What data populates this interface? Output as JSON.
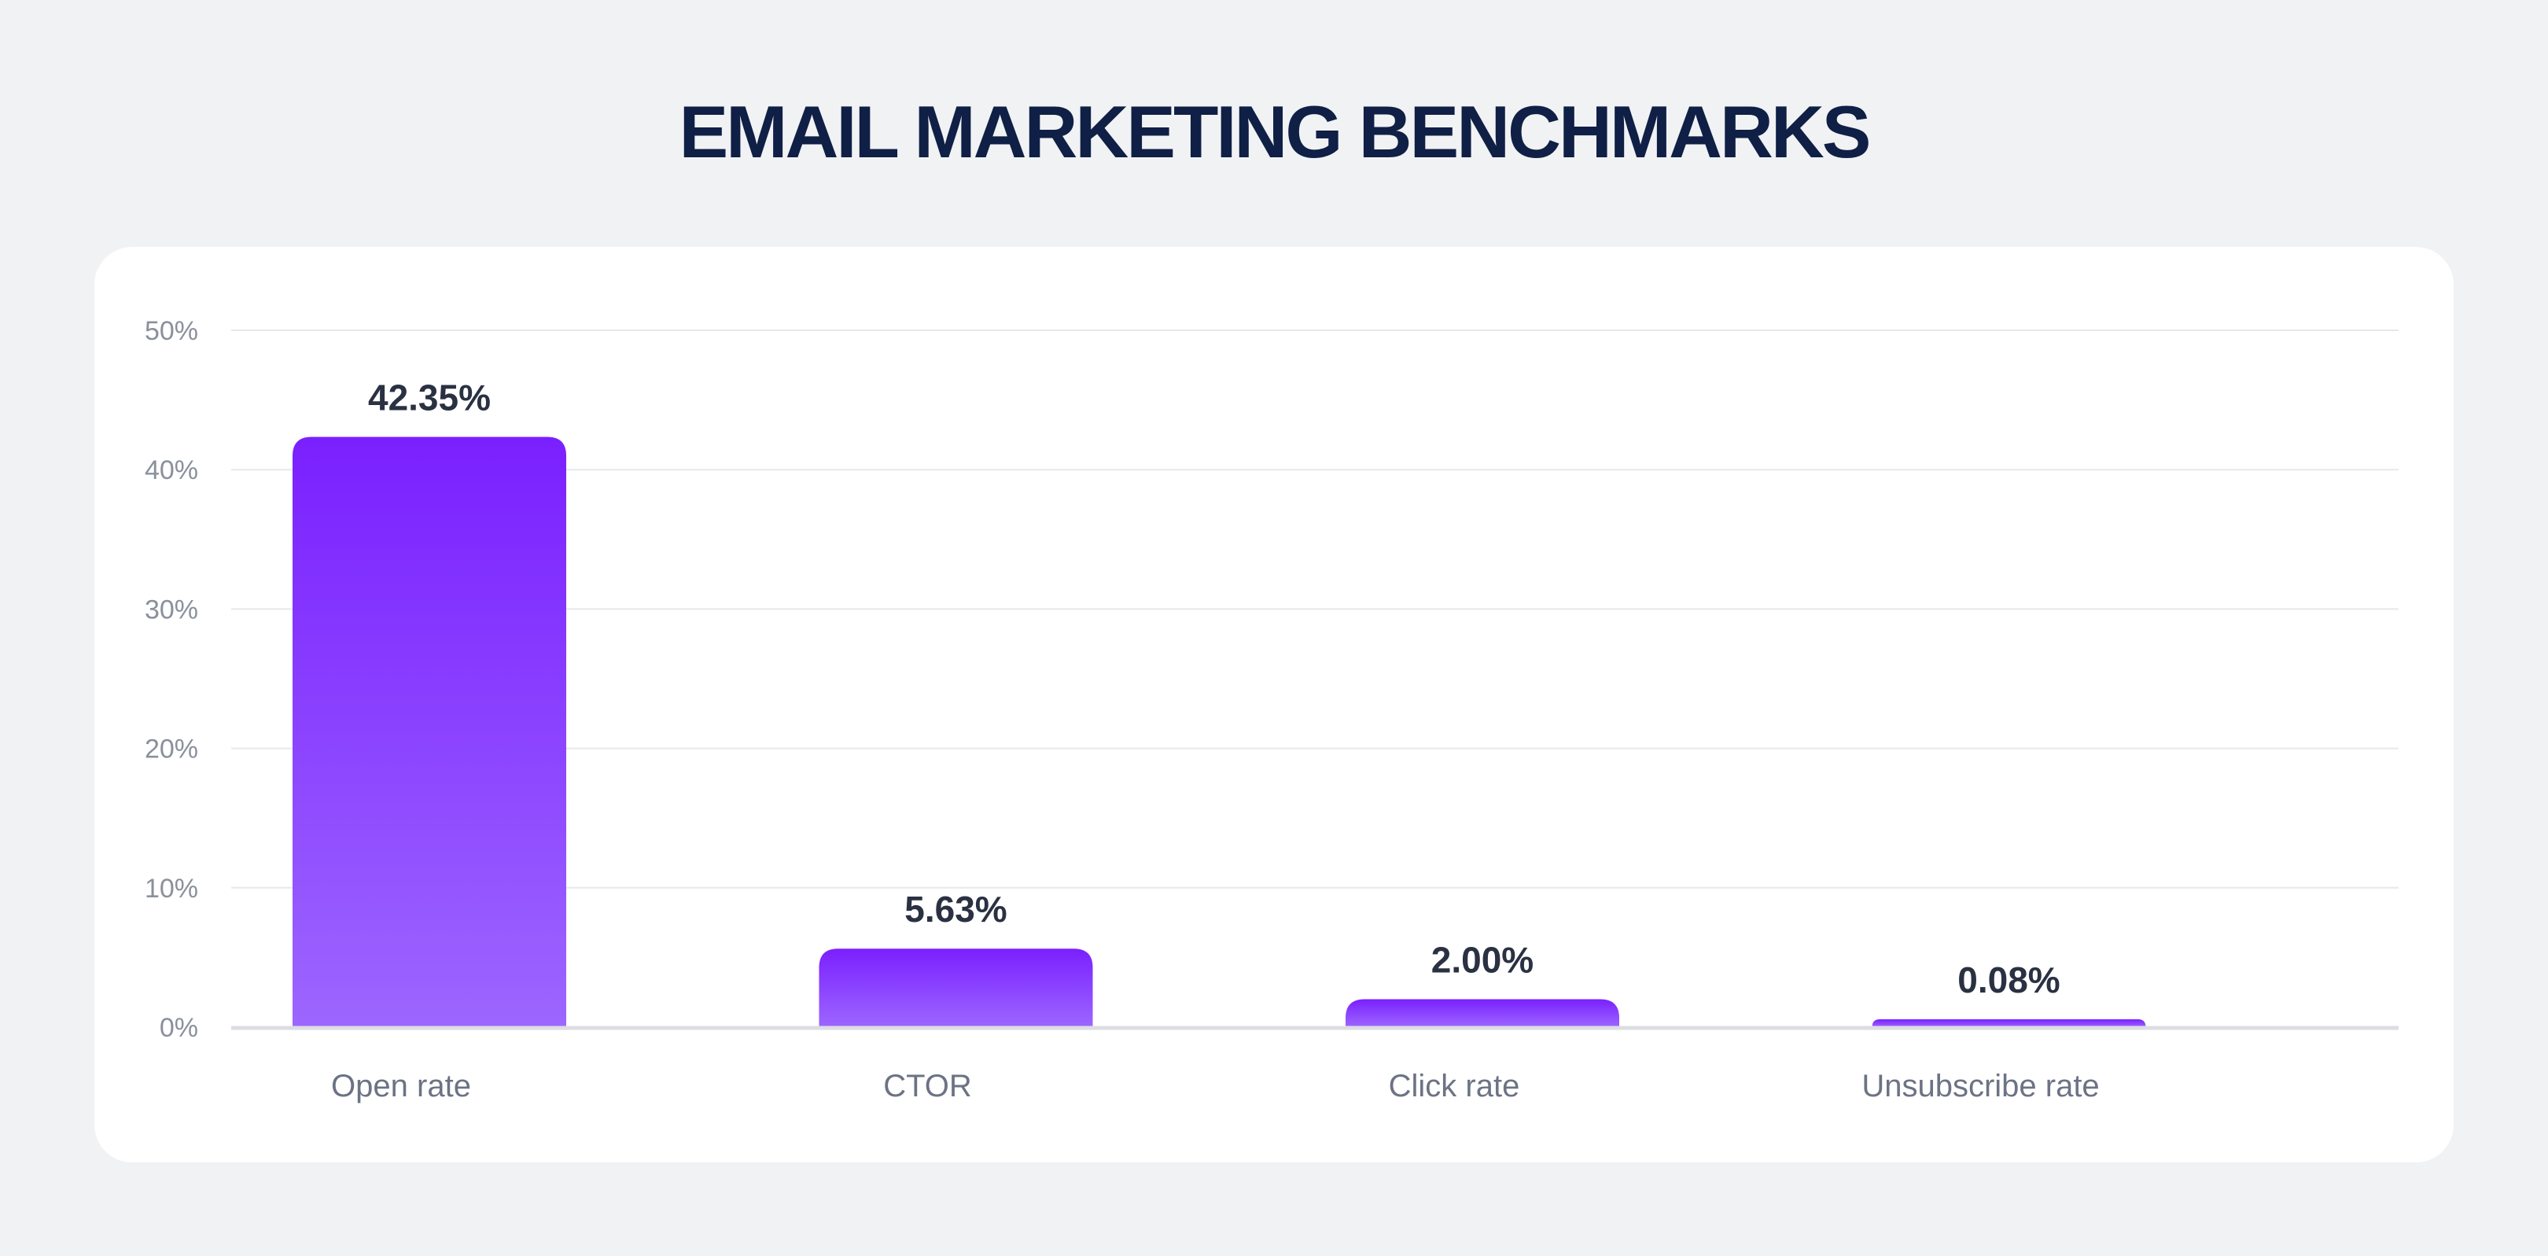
{
  "header": {
    "title": "EMAIL MARKETING BENCHMARKS"
  },
  "colors": {
    "bar_top": "#7a20ff",
    "bar_bottom": "#9d66ff",
    "gridline": "#e6e8ec",
    "baseline": "#dcdee3"
  },
  "chart_data": {
    "type": "bar",
    "title": "EMAIL MARKETING BENCHMARKS",
    "xlabel": "",
    "ylabel": "",
    "categories": [
      "Open rate",
      "CTOR",
      "Click rate",
      "Unsubscribe rate"
    ],
    "values": [
      42.35,
      5.63,
      2.0,
      0.08
    ],
    "data_labels": [
      "42.35%",
      "5.63%",
      "2.00%",
      "0.08%"
    ],
    "ylim": [
      0,
      50
    ],
    "y_ticks": [
      {
        "value": 0,
        "label": "0%"
      },
      {
        "value": 10,
        "label": "10%"
      },
      {
        "value": 20,
        "label": "20%"
      },
      {
        "value": 30,
        "label": "30%"
      },
      {
        "value": 40,
        "label": "40%"
      },
      {
        "value": 50,
        "label": "50%"
      }
    ],
    "grid": true,
    "legend": "none"
  }
}
